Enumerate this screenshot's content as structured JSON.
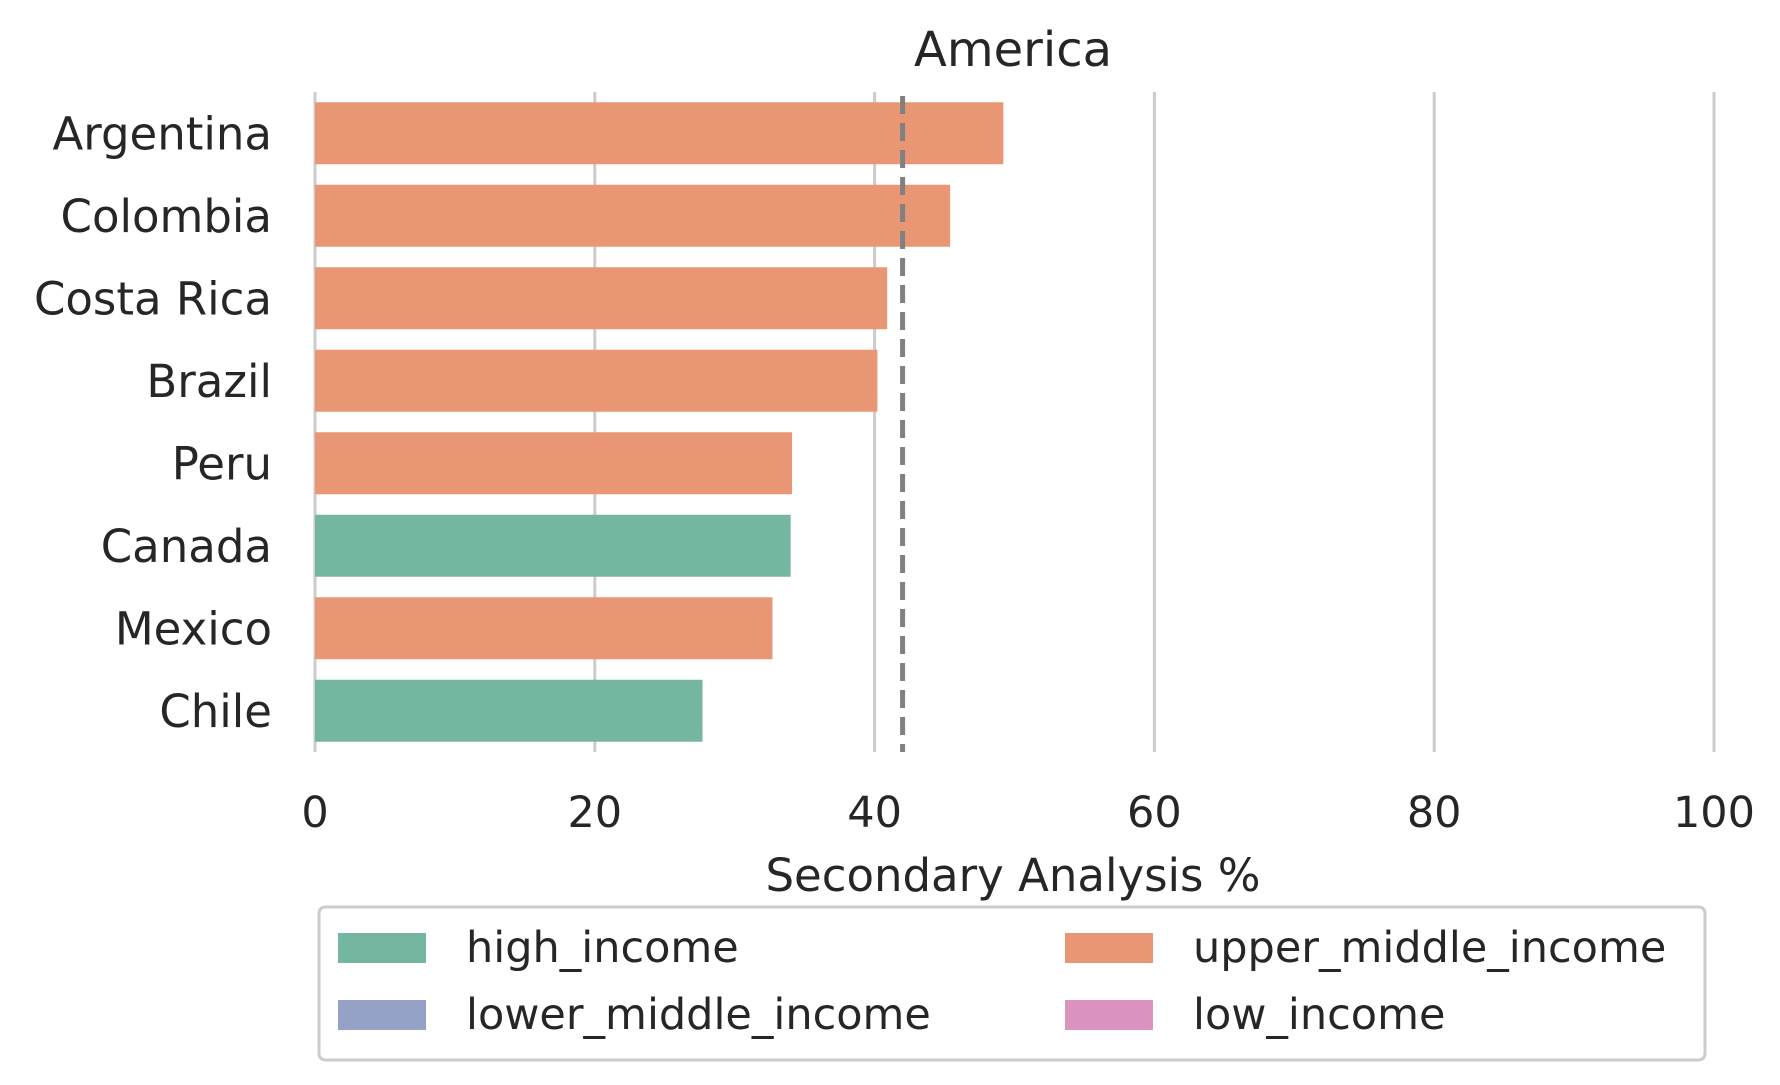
{
  "chart_data": {
    "type": "bar",
    "orientation": "horizontal",
    "title": "America",
    "xlabel": "Secondary Analysis %",
    "ylabel": "",
    "xlim": [
      0,
      100
    ],
    "xticks": [
      0,
      20,
      40,
      60,
      80,
      100
    ],
    "grid": "vertical",
    "reference_line": {
      "value": 42,
      "style": "dashed",
      "color": "#808080"
    },
    "categories": [
      "Argentina",
      "Colombia",
      "Costa Rica",
      "Brazil",
      "Peru",
      "Canada",
      "Mexico",
      "Chile"
    ],
    "values": [
      49.2,
      45.4,
      40.9,
      40.2,
      34.1,
      34.0,
      32.7,
      27.7
    ],
    "groups": [
      "upper_middle_income",
      "upper_middle_income",
      "upper_middle_income",
      "upper_middle_income",
      "upper_middle_income",
      "high_income",
      "upper_middle_income",
      "high_income"
    ],
    "legend": {
      "placement": "bottom",
      "entries": [
        {
          "name": "high_income",
          "color": "#74b6a0"
        },
        {
          "name": "lower_middle_income",
          "color": "#95a2c6"
        },
        {
          "name": "upper_middle_income",
          "color": "#e99674"
        },
        {
          "name": "low_income",
          "color": "#db93bf"
        }
      ]
    }
  }
}
